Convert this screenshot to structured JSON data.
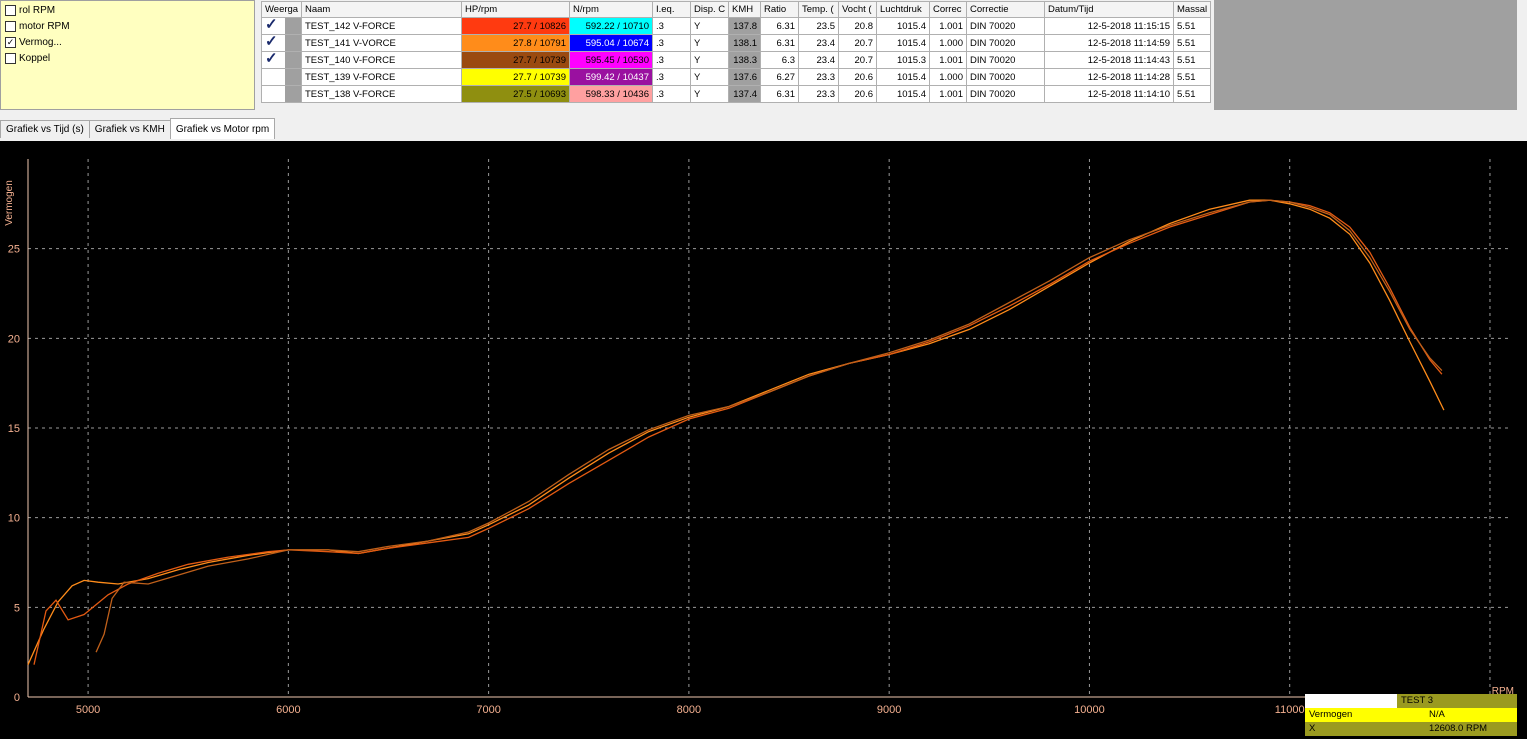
{
  "channels": [
    {
      "label": "rol RPM",
      "checked": false
    },
    {
      "label": "motor RPM",
      "checked": false
    },
    {
      "label": "Vermog...",
      "checked": true
    },
    {
      "label": "Koppel",
      "checked": false
    }
  ],
  "grid": {
    "headers": [
      "Weerga",
      "Naam",
      "HP/rpm",
      "N/rpm",
      "I.eq.",
      "Disp. C",
      "KMH",
      "Ratio",
      "Temp. (",
      "Vocht (",
      "Luchtdruk",
      "Correc",
      "Correctie",
      "Datum/Tijd",
      "Massal"
    ],
    "rows": [
      {
        "shown": true,
        "name": "TEST_142 V-FORCE",
        "hp": "27.7 / 10826",
        "hp_color": "#ff3a10",
        "n": "592.22 / 10710",
        "n_color": "#00ffff",
        "n_text": "#000000",
        "ieq": ".3",
        "disp": "Y",
        "kmh": "137.8",
        "ratio": "6.31",
        "temp": "23.5",
        "vocht": "20.8",
        "druk": "1015.4",
        "corr": "1.001",
        "correctie": "DIN 70020",
        "datum": "12-5-2018 11:15:15",
        "massa": "5.51"
      },
      {
        "shown": true,
        "name": "TEST_141 V-VORCE",
        "hp": "27.8 / 10791",
        "hp_color": "#ff8c1a",
        "n": "595.04 / 10674",
        "n_color": "#0000ff",
        "n_text": "#ffffff",
        "ieq": ".3",
        "disp": "Y",
        "kmh": "138.1",
        "ratio": "6.31",
        "temp": "23.4",
        "vocht": "20.7",
        "druk": "1015.4",
        "corr": "1.000",
        "correctie": "DIN 70020",
        "datum": "12-5-2018 11:14:59",
        "massa": "5.51"
      },
      {
        "shown": true,
        "name": "TEST_140 V-FORCE",
        "hp": "27.7 / 10739",
        "hp_color": "#9a4a10",
        "n": "595.45 / 10530",
        "n_color": "#ff00ff",
        "n_text": "#000000",
        "ieq": ".3",
        "disp": "Y",
        "kmh": "138.3",
        "ratio": "6.3",
        "temp": "23.4",
        "vocht": "20.7",
        "druk": "1015.3",
        "corr": "1.001",
        "correctie": "DIN 70020",
        "datum": "12-5-2018 11:14:43",
        "massa": "5.51"
      },
      {
        "shown": false,
        "name": "TEST_139 V-FORCE",
        "hp": "27.7 / 10739",
        "hp_color": "#ffff00",
        "n": "599.42 / 10437",
        "n_color": "#9a10a0",
        "n_text": "#ffffff",
        "ieq": ".3",
        "disp": "Y",
        "kmh": "137.6",
        "ratio": "6.27",
        "temp": "23.3",
        "vocht": "20.6",
        "druk": "1015.4",
        "corr": "1.000",
        "correctie": "DIN 70020",
        "datum": "12-5-2018 11:14:28",
        "massa": "5.51"
      },
      {
        "shown": false,
        "name": "TEST_138 V-FORCE",
        "hp": "27.5 / 10693",
        "hp_color": "#8f8f10",
        "n": "598.33 / 10436",
        "n_color": "#ffa0a0",
        "n_text": "#000000",
        "ieq": ".3",
        "disp": "Y",
        "kmh": "137.4",
        "ratio": "6.31",
        "temp": "23.3",
        "vocht": "20.6",
        "druk": "1015.4",
        "corr": "1.001",
        "correctie": "DIN 70020",
        "datum": "12-5-2018 11:14:10",
        "massa": "5.51"
      }
    ]
  },
  "tabs": [
    "Grafiek vs Tijd (s)",
    "Grafiek vs KMH",
    "Grafiek vs Motor rpm"
  ],
  "active_tab": 2,
  "legend": {
    "test": "TEST   3",
    "label1": "Vermogen",
    "value1": "N/A",
    "label2": "X",
    "value2": "12608.0 RPM"
  },
  "chart_data": {
    "type": "line",
    "ylabel": "Vermogen",
    "xlabel": "RPM",
    "xlim": [
      4700,
      12100
    ],
    "ylim": [
      0,
      30
    ],
    "xticks": [
      5000,
      6000,
      7000,
      8000,
      9000,
      10000,
      11000,
      12000
    ],
    "yticks": [
      0,
      5,
      10,
      15,
      20,
      25
    ],
    "grid": true,
    "background": "#000000",
    "series": [
      {
        "color": "#ff8c1a",
        "x": [
          4700,
          4780,
          4850,
          4920,
          4980,
          5050,
          5150,
          5300,
          5450,
          5600,
          5800,
          6000,
          6200,
          6350,
          6500,
          6700,
          6900,
          7000,
          7200,
          7400,
          7600,
          7800,
          8000,
          8200,
          8400,
          8600,
          8800,
          9000,
          9200,
          9400,
          9600,
          9800,
          10000,
          10200,
          10400,
          10600,
          10800,
          10900,
          11000,
          11100,
          11200,
          11300,
          11400,
          11500,
          11600,
          11700,
          11770
        ],
        "y": [
          1.8,
          3.8,
          5.3,
          6.2,
          6.5,
          6.4,
          6.3,
          6.6,
          7.1,
          7.5,
          7.9,
          8.2,
          8.2,
          8.0,
          8.3,
          8.7,
          9.1,
          9.6,
          10.7,
          12.2,
          13.6,
          14.8,
          15.6,
          16.2,
          17.1,
          18.0,
          18.6,
          19.1,
          19.7,
          20.5,
          21.6,
          22.9,
          24.2,
          25.4,
          26.4,
          27.2,
          27.7,
          27.7,
          27.5,
          27.2,
          26.7,
          25.8,
          24.2,
          22.1,
          19.8,
          17.6,
          16.0
        ]
      },
      {
        "color": "#e35a12",
        "x": [
          4730,
          4790,
          4840,
          4900,
          4980,
          5100,
          5200,
          5350,
          5500,
          5700,
          5900,
          6000,
          6200,
          6350,
          6500,
          6700,
          6900,
          7000,
          7200,
          7400,
          7600,
          7800,
          8000,
          8200,
          8400,
          8600,
          8800,
          9000,
          9200,
          9400,
          9600,
          9800,
          10000,
          10200,
          10400,
          10600,
          10800,
          10900,
          11000,
          11100,
          11200,
          11300,
          11400,
          11500,
          11600,
          11700,
          11760
        ],
        "y": [
          1.8,
          4.8,
          5.4,
          4.3,
          4.6,
          5.7,
          6.3,
          6.9,
          7.4,
          7.8,
          8.1,
          8.2,
          8.1,
          8.0,
          8.3,
          8.6,
          8.9,
          9.4,
          10.5,
          11.9,
          13.2,
          14.5,
          15.5,
          16.1,
          17.0,
          17.9,
          18.6,
          19.1,
          19.8,
          20.7,
          21.8,
          23.0,
          24.3,
          25.3,
          26.2,
          26.9,
          27.6,
          27.7,
          27.6,
          27.4,
          27.0,
          26.2,
          24.8,
          22.8,
          20.6,
          18.8,
          18.0
        ]
      },
      {
        "color": "#c0601a",
        "x": [
          5040,
          5080,
          5120,
          5180,
          5300,
          5450,
          5600,
          5800,
          6000,
          6200,
          6350,
          6500,
          6700,
          6900,
          7000,
          7200,
          7400,
          7600,
          7800,
          8000,
          8200,
          8400,
          8600,
          8800,
          9000,
          9200,
          9400,
          9600,
          9800,
          10000,
          10200,
          10400,
          10600,
          10800,
          10900,
          11000,
          11100,
          11200,
          11300,
          11400,
          11500,
          11600,
          11700,
          11760
        ],
        "y": [
          2.5,
          3.5,
          5.5,
          6.4,
          6.3,
          6.8,
          7.3,
          7.7,
          8.2,
          8.2,
          8.1,
          8.4,
          8.7,
          9.2,
          9.7,
          10.9,
          12.4,
          13.8,
          14.9,
          15.7,
          16.2,
          17.0,
          17.9,
          18.6,
          19.2,
          19.9,
          20.8,
          22.0,
          23.2,
          24.5,
          25.5,
          26.3,
          27.0,
          27.6,
          27.7,
          27.6,
          27.3,
          26.9,
          26.0,
          24.5,
          22.6,
          20.5,
          18.9,
          18.2
        ]
      }
    ]
  }
}
